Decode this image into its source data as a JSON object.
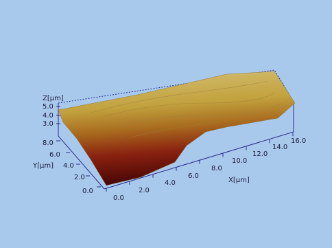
{
  "axes": {
    "z": {
      "label": "Z[µm]",
      "ticks": [
        "5.0",
        "4.0",
        "3.0"
      ]
    },
    "y": {
      "label": "Y[µm]",
      "ticks": [
        "8.0",
        "6.0",
        "4.0",
        "2.0",
        "0.0"
      ]
    },
    "x": {
      "label": "X[µm]",
      "ticks": [
        "0.0",
        "2.0",
        "4.0",
        "6.0",
        "8.0",
        "10.0",
        "12.0",
        "14.0",
        "16.0"
      ]
    }
  }
}
